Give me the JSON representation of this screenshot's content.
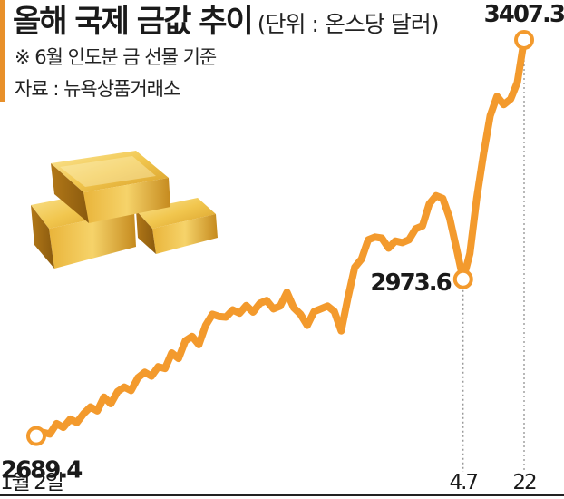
{
  "header": {
    "title": "올해 국제 금값 추이",
    "unit": "(단위 : 온스당 달러)",
    "note": "※ 6월 인도분 금 선물 기준",
    "source": "자료 : 뉴욕상품거래소"
  },
  "colors": {
    "line": "#f39a2d",
    "accent_bar": "#e8902a",
    "gold_light": "#f7d774",
    "gold_mid": "#e3b23c",
    "gold_dark": "#a8741a"
  },
  "illustration": {
    "icon": "gold-bars-icon"
  },
  "chart_data": {
    "type": "line",
    "title": "올해 국제 금값 추이",
    "ylabel": "",
    "xlabel": "",
    "ylim": [
      2600,
      3450
    ],
    "ticks": [
      {
        "label": "1월 2일",
        "index": 0
      },
      {
        "label": "4.7",
        "index": 63
      },
      {
        "label": "22",
        "index": 72
      }
    ],
    "annotations": [
      {
        "label": "2689.4",
        "index": 0
      },
      {
        "label": "2973.6",
        "index": 63
      },
      {
        "label": "3407.3",
        "index": 72
      }
    ],
    "values": [
      2689.4,
      2696,
      2693,
      2712,
      2705,
      2720,
      2714,
      2730,
      2742,
      2735,
      2760,
      2748,
      2770,
      2778,
      2772,
      2795,
      2805,
      2798,
      2815,
      2812,
      2840,
      2830,
      2862,
      2870,
      2855,
      2890,
      2910,
      2906,
      2905,
      2918,
      2912,
      2926,
      2914,
      2930,
      2935,
      2920,
      2925,
      2950,
      2922,
      2910,
      2890,
      2915,
      2920,
      2925,
      2915,
      2880,
      2940,
      2995,
      3010,
      3045,
      3050,
      3048,
      3030,
      3043,
      3040,
      3045,
      3065,
      3070,
      3110,
      3125,
      3120,
      3085,
      3030,
      2973.6,
      3020,
      3120,
      3200,
      3270,
      3305,
      3290,
      3300,
      3330,
      3407.3
    ]
  }
}
